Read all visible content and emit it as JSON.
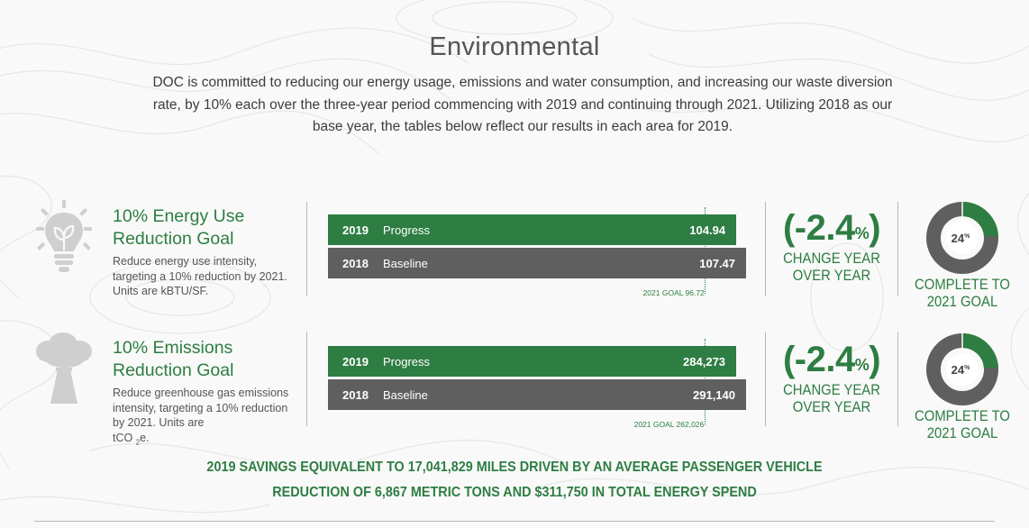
{
  "title": "Environmental",
  "intro": "DOC is committed to reducing our energy usage, emissions and water consumption, and increasing our waste diversion rate, by 10% each over the three-year period commencing with 2019 and continuing through 2021. Utilizing 2018 as our base year, the tables below reflect our results in each area for 2019.",
  "colors": {
    "accent": "#2e7d43",
    "baseline": "#5f5f5f",
    "donut_track": "#5f5f5f"
  },
  "sections": [
    {
      "icon": "lightbulb-leaf-icon",
      "title_line1": "10% Energy Use",
      "title_line2": "Reduction Goal",
      "description": "Reduce energy use intensity, targeting a 10% reduction by 2021. Units are kBTU/SF.",
      "progress": {
        "year": "2019",
        "label": "Progress",
        "value": 104.94,
        "display": "104.94"
      },
      "baseline": {
        "year": "2018",
        "label": "Baseline",
        "value": 107.47,
        "display": "107.47"
      },
      "goal": {
        "value": 96.72,
        "label": "2021 GOAL 96.72"
      },
      "change": {
        "value": "(-2.4",
        "unit": "%",
        "close": ")",
        "label_line1": "CHANGE YEAR",
        "label_line2": "OVER YEAR"
      },
      "complete": {
        "percent": 24,
        "value": "24",
        "unit": "%",
        "label_line1": "COMPLETE TO",
        "label_line2": "2021 GOAL"
      }
    },
    {
      "icon": "smokestack-icon",
      "title_line1": "10% Emissions",
      "title_line2": "Reduction Goal",
      "description": "Reduce greenhouse gas emissions intensity, targeting a 10% reduction by 2021. Units are",
      "description_tail": "tCO",
      "description_sub": "2",
      "description_end": "e.",
      "progress": {
        "year": "2019",
        "label": "Progress",
        "value": 284273,
        "display": "284,273"
      },
      "baseline": {
        "year": "2018",
        "label": "Baseline",
        "value": 291140,
        "display": "291,140"
      },
      "goal": {
        "value": 262026,
        "label": "2021 GOAL 262,026"
      },
      "change": {
        "value": "(-2.4",
        "unit": "%",
        "close": ")",
        "label_line1": "CHANGE YEAR",
        "label_line2": "OVER YEAR"
      },
      "complete": {
        "percent": 24,
        "value": "24",
        "unit": "%",
        "label_line1": "COMPLETE TO",
        "label_line2": "2021 GOAL"
      }
    }
  ],
  "savings_line1": "2019 SAVINGS EQUIVALENT TO 17,041,829 MILES DRIVEN BY AN AVERAGE PASSENGER VEHICLE",
  "savings_line2": "REDUCTION OF 6,867 METRIC TONS AND $311,750 IN TOTAL ENERGY SPEND"
}
